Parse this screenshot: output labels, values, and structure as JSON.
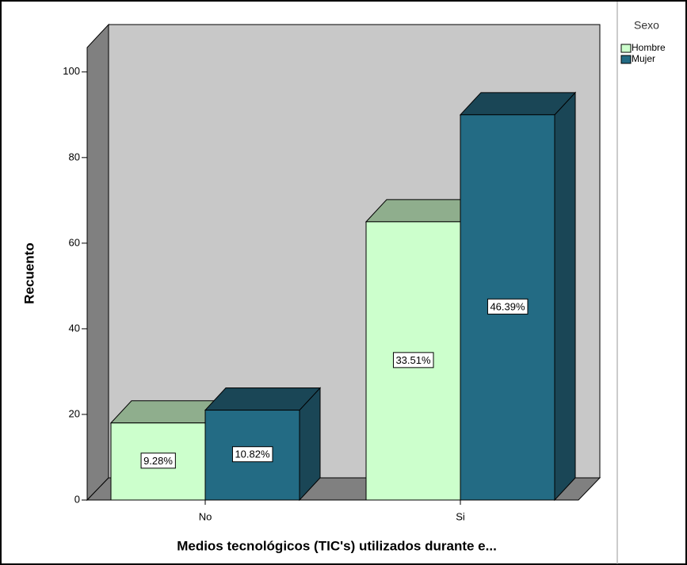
{
  "chart_data": {
    "type": "bar3d",
    "x_label": "Medios tecnológicos (TIC's) utilizados durante e...",
    "y_label": "Recuento",
    "legend_title": "Sexo",
    "categories": [
      "No",
      "Si"
    ],
    "series": [
      {
        "name": "Hombre",
        "color": "#ccffcc",
        "top_color": "#8fae8d",
        "values": [
          18,
          65
        ],
        "percent_labels": [
          "9.28%",
          "33.51%"
        ]
      },
      {
        "name": "Mujer",
        "color": "#236b84",
        "top_color": "#1a4656",
        "values": [
          21,
          90
        ],
        "percent_labels": [
          "10.82%",
          "46.39%"
        ]
      }
    ],
    "ylim": [
      0,
      105.7
    ],
    "yticks": [
      0,
      20,
      40,
      60,
      80,
      100
    ],
    "legend_position": "top-right"
  }
}
